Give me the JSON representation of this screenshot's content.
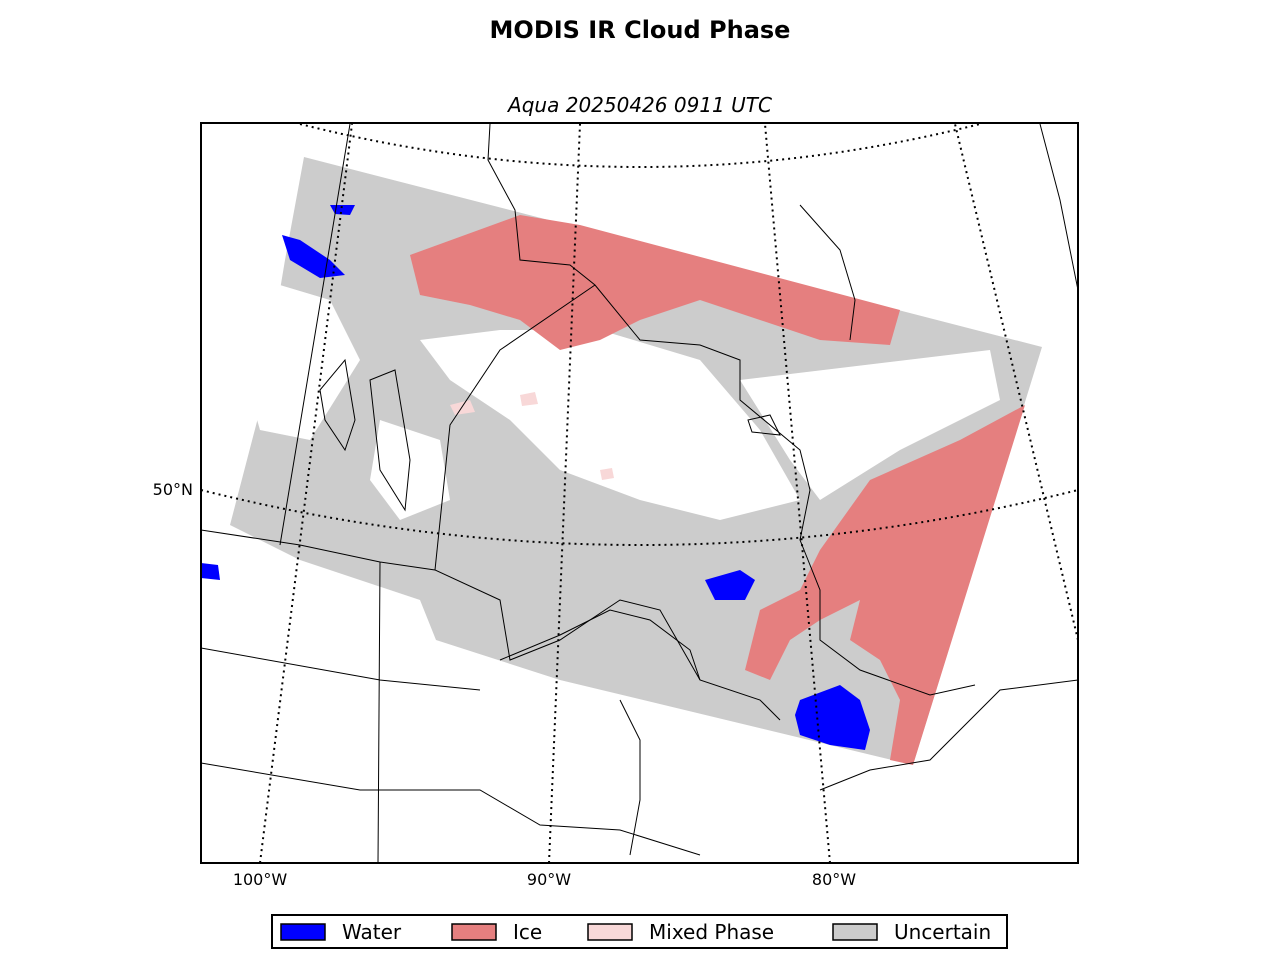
{
  "title": "MODIS IR Cloud Phase",
  "subtitle": "Aqua 20250426 0911 UTC",
  "graticule": {
    "lat_labels": [
      "50°N"
    ],
    "lon_labels": [
      "100°W",
      "90°W",
      "80°W"
    ]
  },
  "legend": [
    {
      "name": "Water",
      "color": "#0000ff"
    },
    {
      "name": "Ice",
      "color": "#e57f7f"
    },
    {
      "name": "Mixed Phase",
      "color": "#f8d8d8"
    },
    {
      "name": "Uncertain",
      "color": "#cccccc"
    }
  ]
}
